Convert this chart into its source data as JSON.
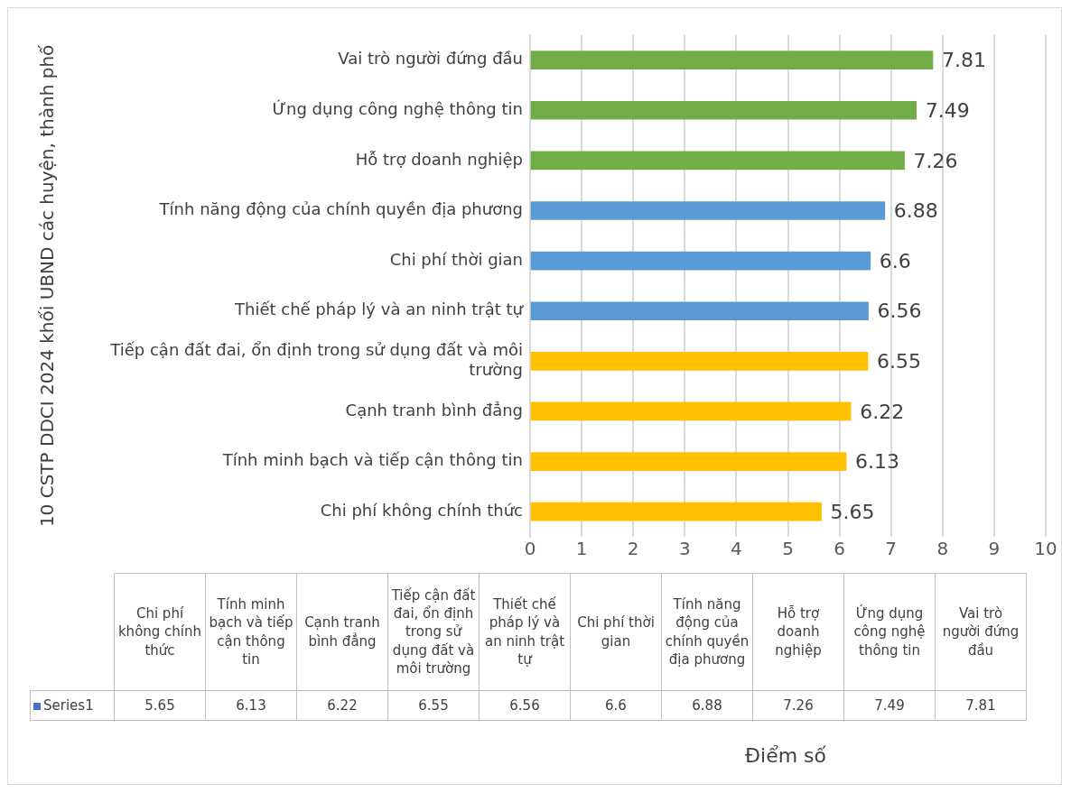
{
  "chart_data": [
    {
      "type": "bar",
      "orientation": "horizontal",
      "ylabel": "10 CSTP DDCI 2024 khối UBND các huyện, thành phố",
      "categories": [
        "Vai trò người đứng đầu",
        "Ứng dụng công nghệ thông tin",
        "Hỗ trợ doanh nghiệp",
        "Tính năng động của chính quyền địa phương",
        "Chi phí thời gian",
        "Thiết chế pháp lý và an ninh trật tự",
        "Tiếp cận đất đai, ổn định trong sử dụng đất và môi trường",
        "Cạnh tranh bình đẳng",
        "Tính minh bạch và tiếp cận thông tin",
        "Chi phí không chính thức"
      ],
      "series": [
        {
          "values": [
            7.81,
            7.49,
            7.26,
            6.88,
            6.6,
            6.56,
            6.55,
            6.22,
            6.13,
            5.65
          ],
          "colors": [
            "#70ad47",
            "#70ad47",
            "#70ad47",
            "#5b9bd5",
            "#5b9bd5",
            "#5b9bd5",
            "#ffc000",
            "#ffc000",
            "#ffc000",
            "#ffc000"
          ]
        }
      ],
      "xlim": [
        0,
        10
      ],
      "xticks": [
        0,
        1,
        2,
        3,
        4,
        5,
        6,
        7,
        8,
        9,
        10
      ],
      "grid": "x",
      "data_labels": true
    },
    {
      "type": "other",
      "annotations": [
        "Điểm số"
      ],
      "categories": [
        "Chi phí không chính thức",
        "Tính minh bạch và tiếp cận thông tin",
        "Cạnh tranh bình đẳng",
        "Tiếp cận đất đai, ổn định trong sử dụng đất và môi trường",
        "Thiết chế pháp lý và an ninh trật tự",
        "Chi phí thời gian",
        "Tính năng động của chính quyền địa phương",
        "Hỗ trợ doanh nghiệp",
        "Ứng dụng công nghệ thông tin",
        "Vai trò người đứng đầu"
      ],
      "series": [
        {
          "name": "Series1",
          "color": "#4472c4",
          "values": [
            5.65,
            6.13,
            6.22,
            6.55,
            6.56,
            6.6,
            6.88,
            7.26,
            7.49,
            7.81
          ]
        }
      ],
      "data_labels": true
    }
  ]
}
